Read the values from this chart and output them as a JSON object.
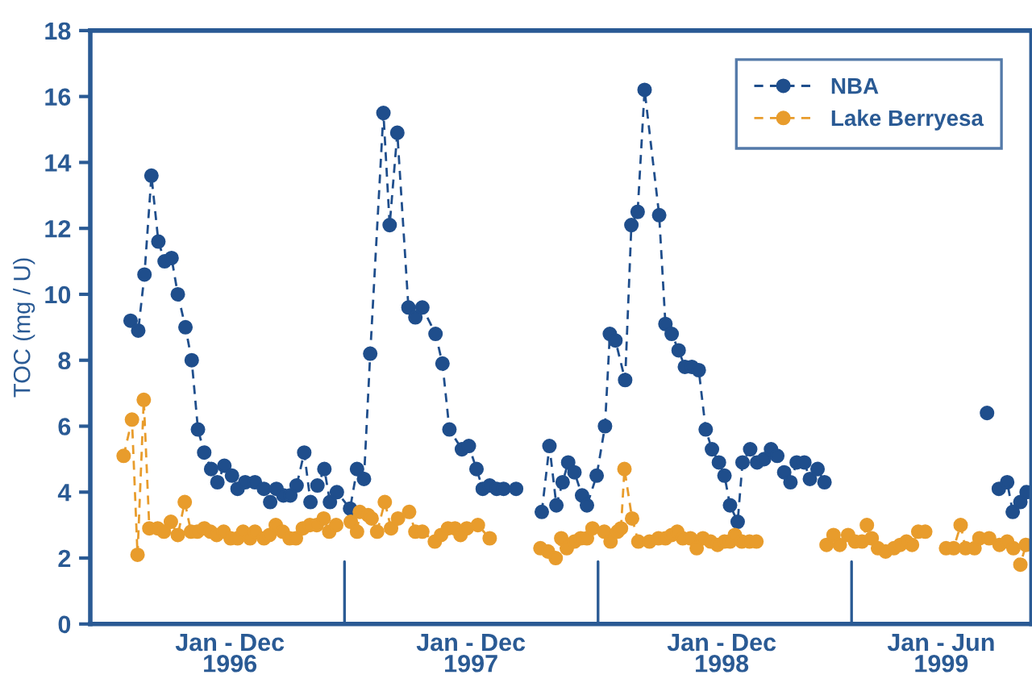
{
  "chart_data": {
    "type": "line",
    "ylabel": "TOC (mg / U)",
    "xlim": [
      "1996-01-01",
      "1999-09-17"
    ],
    "ylim": [
      0,
      18
    ],
    "yticks": [
      0,
      2,
      4,
      6,
      8,
      10,
      12,
      14,
      16,
      18
    ],
    "xticks": [
      {
        "value": "1996-07-20",
        "label": "Jan - Dec\n1996"
      },
      {
        "value": "1997-07-02",
        "label": "Jan - Dec\n1997"
      },
      {
        "value": "1998-06-28",
        "label": "Jan - Dec\n1998"
      },
      {
        "value": "1999-05-10",
        "label": "Jan - Jun\n1999"
      }
    ],
    "ref_lines": [
      {
        "axis": "x",
        "value": "1997-01-01"
      },
      {
        "axis": "x",
        "value": "1998-01-01"
      },
      {
        "axis": "x",
        "value": "1999-01-01"
      }
    ],
    "grid": false,
    "legend": "top right",
    "marker": "circle",
    "line_style": "dashed",
    "series": [
      {
        "name": "NBA",
        "color": "#1f4e8c",
        "x": [
          "1996-02-28",
          "1996-03-10",
          "1996-03-19",
          "1996-03-29",
          "1996-04-08",
          "1996-04-17",
          "1996-04-27",
          "1996-05-06",
          "1996-05-17",
          "1996-05-26",
          "1996-06-04",
          "1996-06-13",
          "1996-06-23",
          "1996-07-02",
          "1996-07-12",
          "1996-07-23",
          "1996-07-31",
          "1996-08-11",
          "1996-08-25",
          "1996-09-07",
          "1996-09-16",
          "1996-09-25",
          "1996-10-05",
          "1996-10-15",
          "1996-10-24",
          "1996-11-04",
          "1996-11-13",
          "1996-11-23",
          "1996-12-03",
          "1996-12-11",
          "1996-12-21",
          "1997-01-09",
          "1997-01-19",
          "1997-01-29",
          "1997-02-07",
          "1997-02-26",
          "1997-03-07",
          "1997-03-18",
          "1997-04-03",
          "1997-04-13",
          "1997-04-23",
          "1997-05-12",
          "1997-05-22",
          "1997-06-01",
          "1997-06-19",
          "1997-06-29",
          "1997-07-10",
          "1997-07-19",
          "1997-07-29",
          "1997-08-08",
          "1997-08-18",
          "1997-09-05",
          "1997-10-01",
          "1997-10-12",
          "1997-10-23",
          "1997-11-02",
          "1997-11-11",
          "1997-11-19",
          "1997-11-28",
          "1997-12-09",
          "1997-12-16",
          "1997-12-30",
          "1998-01-11",
          "1998-01-18",
          "1998-01-26",
          "1998-02-09",
          "1998-02-18",
          "1998-02-27",
          "1998-03-09",
          "1998-03-30",
          "1998-04-08",
          "1998-04-17",
          "1998-04-27",
          "1998-05-06",
          "1998-05-16",
          "1998-05-26",
          "1998-06-05",
          "1998-06-14",
          "1998-06-24",
          "1998-07-02",
          "1998-07-10",
          "1998-07-21",
          "1998-07-28",
          "1998-08-08",
          "1998-08-18",
          "1998-08-28",
          "1998-09-07",
          "1998-09-16",
          "1998-09-26",
          "1998-10-05",
          "1998-10-14",
          "1998-10-25",
          "1998-11-02",
          "1998-11-13",
          "1998-11-23",
          "1999-03-01",
          "1999-07-15",
          "1999-07-23",
          "1999-08-01",
          "1999-08-13",
          "1999-08-21",
          "1999-09-01",
          "1999-09-10"
        ],
        "values": [
          9.2,
          8.9,
          10.6,
          13.6,
          11.6,
          11.0,
          11.1,
          10.0,
          9.0,
          8.0,
          5.9,
          5.2,
          4.7,
          4.3,
          4.8,
          4.5,
          4.1,
          4.3,
          4.3,
          4.1,
          3.7,
          4.1,
          3.9,
          3.9,
          4.2,
          5.2,
          3.7,
          4.2,
          4.7,
          3.7,
          4.0,
          3.5,
          4.7,
          4.4,
          8.2,
          15.5,
          12.1,
          14.9,
          9.6,
          9.3,
          9.6,
          8.8,
          7.9,
          5.9,
          5.3,
          5.4,
          4.7,
          4.1,
          4.2,
          4.1,
          4.1,
          4.1,
          null,
          3.4,
          5.4,
          3.6,
          4.3,
          4.9,
          4.6,
          3.9,
          3.6,
          4.5,
          6.0,
          8.8,
          8.6,
          7.4,
          12.1,
          12.5,
          16.2,
          12.4,
          9.1,
          8.8,
          8.3,
          7.8,
          7.8,
          7.7,
          5.9,
          5.3,
          4.9,
          4.5,
          3.6,
          3.1,
          4.9,
          5.3,
          4.9,
          5.0,
          5.3,
          5.1,
          4.6,
          4.3,
          4.9,
          4.9,
          4.4,
          4.7,
          4.3,
          null,
          6.4,
          null,
          4.1,
          4.3,
          3.4,
          3.7,
          4.0
        ]
      },
      {
        "name": "Lake Berryesa",
        "color": "#e89c2c",
        "x": [
          "1996-02-18",
          "1996-03-01",
          "1996-03-09",
          "1996-03-18",
          "1996-03-26",
          "1996-04-07",
          "1996-04-16",
          "1996-04-26",
          "1996-05-06",
          "1996-05-16",
          "1996-05-25",
          "1996-06-03",
          "1996-06-13",
          "1996-06-22",
          "1996-07-01",
          "1996-07-11",
          "1996-07-21",
          "1996-07-31",
          "1996-08-08",
          "1996-08-18",
          "1996-08-25",
          "1996-09-07",
          "1996-09-15",
          "1996-09-24",
          "1996-10-04",
          "1996-10-14",
          "1996-10-23",
          "1996-11-02",
          "1996-11-12",
          "1996-11-22",
          "1996-12-02",
          "1996-12-10",
          "1996-12-20",
          "1997-01-10",
          "1997-01-19",
          "1997-01-23",
          "1997-02-04",
          "1997-02-09",
          "1997-02-17",
          "1997-02-28",
          "1997-03-09",
          "1997-03-19",
          "1997-04-04",
          "1997-04-13",
          "1997-04-23",
          "1997-05-11",
          "1997-05-20",
          "1997-05-30",
          "1997-06-09",
          "1997-06-17",
          "1997-06-26",
          "1997-07-12",
          "1997-07-29",
          "1997-09-15",
          "1997-10-10",
          "1997-10-21",
          "1997-11-01",
          "1997-11-09",
          "1997-11-17",
          "1997-11-28",
          "1997-12-07",
          "1997-12-16",
          "1997-12-24",
          "1998-01-10",
          "1998-01-19",
          "1998-01-29",
          "1998-02-03",
          "1998-02-08",
          "1998-02-19",
          "1998-02-28",
          "1998-03-16",
          "1998-03-29",
          "1998-04-08",
          "1998-04-17",
          "1998-04-25",
          "1998-05-03",
          "1998-05-14",
          "1998-05-23",
          "1998-06-01",
          "1998-06-12",
          "1998-06-22",
          "1998-07-02",
          "1998-07-10",
          "1998-07-17",
          "1998-07-27",
          "1998-08-07",
          "1998-08-17",
          "1998-10-01",
          "1998-11-26",
          "1998-12-06",
          "1998-12-15",
          "1998-12-27",
          "1999-01-06",
          "1999-01-16",
          "1999-01-23",
          "1999-01-30",
          "1999-02-08",
          "1999-02-19",
          "1999-03-03",
          "1999-03-12",
          "1999-03-21",
          "1999-03-29",
          "1999-04-07",
          "1999-04-17",
          "1999-04-25",
          "1999-05-17",
          "1999-05-28",
          "1999-06-07",
          "1999-06-14",
          "1999-06-27",
          "1999-07-04",
          "1999-07-18",
          "1999-08-02",
          "1999-08-13",
          "1999-08-22",
          "1999-09-01",
          "1999-09-09"
        ],
        "values": [
          5.1,
          6.2,
          2.1,
          6.8,
          2.9,
          2.9,
          2.8,
          3.1,
          2.7,
          3.7,
          2.8,
          2.8,
          2.9,
          2.8,
          2.7,
          2.8,
          2.6,
          2.6,
          2.8,
          2.6,
          2.8,
          2.6,
          2.7,
          3.0,
          2.8,
          2.6,
          2.6,
          2.9,
          3.0,
          3.0,
          3.2,
          2.8,
          3.0,
          3.1,
          2.8,
          3.4,
          3.3,
          3.2,
          2.8,
          3.7,
          2.9,
          3.2,
          3.4,
          2.8,
          2.8,
          2.5,
          2.7,
          2.9,
          2.9,
          2.7,
          2.9,
          3.0,
          2.6,
          null,
          2.3,
          2.2,
          2.0,
          2.6,
          2.3,
          2.5,
          2.6,
          2.6,
          2.9,
          2.8,
          2.5,
          2.8,
          2.9,
          4.7,
          3.2,
          2.5,
          2.5,
          2.6,
          2.6,
          2.7,
          2.8,
          2.6,
          2.6,
          2.3,
          2.6,
          2.5,
          2.4,
          2.5,
          2.5,
          2.7,
          2.5,
          2.5,
          2.5,
          null,
          2.4,
          2.7,
          2.4,
          2.7,
          2.5,
          2.5,
          3.0,
          2.6,
          2.3,
          2.2,
          2.3,
          2.4,
          2.5,
          2.4,
          2.8,
          2.8,
          null,
          2.3,
          2.3,
          3.0,
          2.3,
          2.3,
          2.6,
          2.6,
          2.4,
          2.5,
          2.3,
          1.8,
          2.4
        ]
      }
    ]
  }
}
